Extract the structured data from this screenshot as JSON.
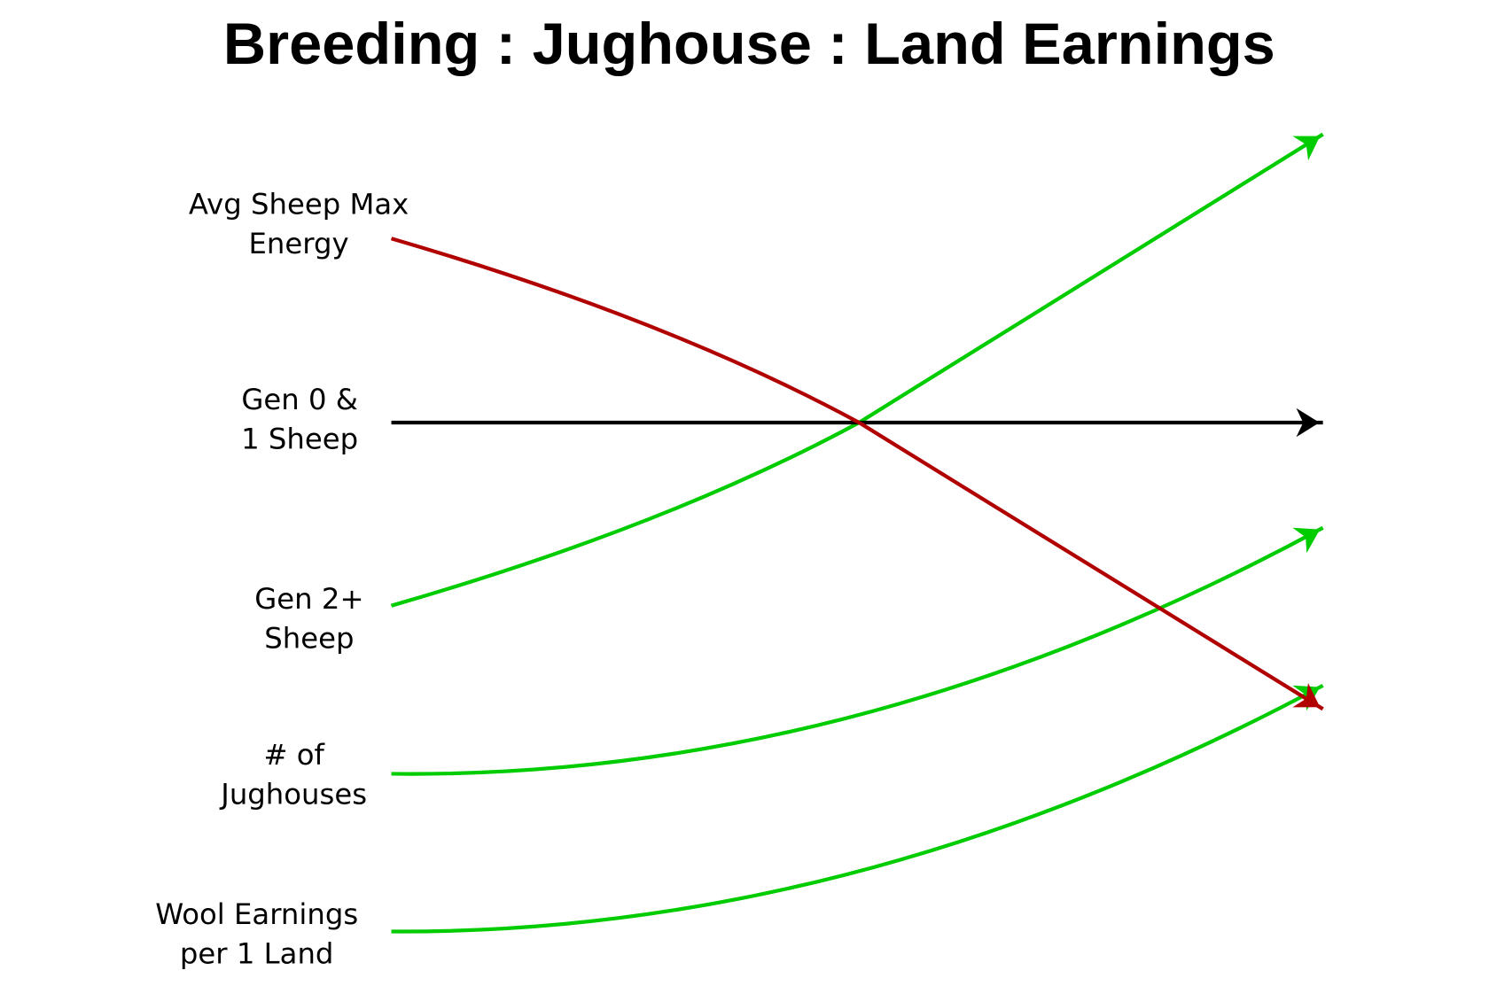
{
  "header": {
    "title": "Breeding : Jughouse : Land Earnings"
  },
  "nodes": [
    {
      "lines": [
        "Avg Sheep Max",
        "Energy"
      ]
    },
    {
      "lines": [
        "Gen 0 &",
        "1 Sheep"
      ]
    },
    {
      "lines": [
        "Gen 2+",
        "Sheep"
      ]
    },
    {
      "lines": [
        "# of",
        "Jughouses"
      ]
    },
    {
      "lines": [
        "Wool Earnings",
        "per 1 Land"
      ]
    }
  ]
}
